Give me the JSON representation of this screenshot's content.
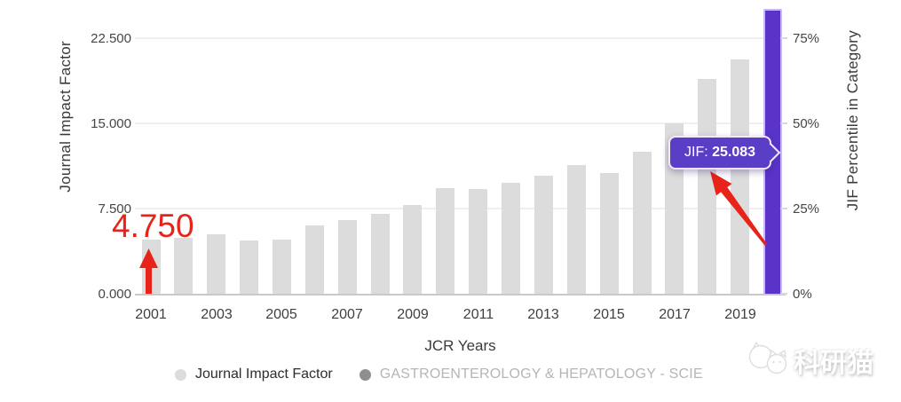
{
  "chart": {
    "left_axis": {
      "title": "Journal Impact Factor"
    },
    "right_axis": {
      "title": "JIF Percentile in Category"
    },
    "x_axis": {
      "title": "JCR Years"
    },
    "tooltip": {
      "label": "JIF:",
      "value": "25.083"
    },
    "annotation": {
      "first_year_value": "4.750"
    },
    "legend": [
      {
        "label": "Journal Impact Factor",
        "color": "#dcdcdc"
      },
      {
        "label": "GASTROENTEROLOGY & HEPATOLOGY - SCIE",
        "color": "#8f8f8f"
      }
    ],
    "watermark": {
      "text": "科研猫"
    },
    "colors": {
      "bar": "#dcdcdc",
      "highlight": "#5a33c8",
      "tooltip_bg": "#5a3ec5",
      "annotation_red": "#e8231a",
      "gridline": "#efefef",
      "axis_line": "#c9c9c9"
    }
  },
  "chart_data": {
    "type": "bar",
    "title": "",
    "xlabel": "JCR Years",
    "ylabel": "Journal Impact Factor",
    "ylabel_right": "JIF Percentile in Category",
    "categories": [
      2001,
      2002,
      2003,
      2004,
      2005,
      2006,
      2007,
      2008,
      2009,
      2010,
      2011,
      2012,
      2013,
      2014,
      2015,
      2016,
      2017,
      2018,
      2019,
      2020
    ],
    "values": [
      4.75,
      4.9,
      5.2,
      4.7,
      4.8,
      6.0,
      6.5,
      7.0,
      7.8,
      9.3,
      9.2,
      9.8,
      10.4,
      11.3,
      10.6,
      12.5,
      15.0,
      18.9,
      20.6,
      25.083
    ],
    "highlighted_index": 19,
    "highlighted_year": 2020,
    "highlighted_value": 25.083,
    "labeled_points": [
      {
        "year": 2001,
        "label": "4.750"
      },
      {
        "year": 2020,
        "label": "JIF: 25.083"
      }
    ],
    "x_tick_labels": [
      "2001",
      "2003",
      "2005",
      "2007",
      "2009",
      "2011",
      "2013",
      "2015",
      "2017",
      "2019"
    ],
    "y_ticks": [
      0,
      7.5,
      15,
      22.5
    ],
    "y_tick_labels": [
      "0.000",
      "7.500",
      "15.000",
      "22.500"
    ],
    "right_ticks": [
      0,
      25,
      50,
      75
    ],
    "right_tick_labels": [
      "0%",
      "25%",
      "50%",
      "75%"
    ],
    "ylim": [
      0,
      25.9
    ],
    "grid": "horizontal",
    "legend_position": "bottom"
  }
}
